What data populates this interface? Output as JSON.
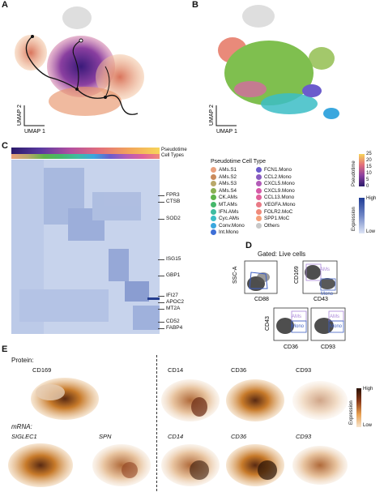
{
  "panels": {
    "a": "A",
    "b": "B",
    "c": "C",
    "d": "D",
    "e": "E"
  },
  "umap_axes": {
    "x": "UMAP 1",
    "y": "UMAP 2"
  },
  "heatmap": {
    "track_labels": [
      "Pseudotime",
      "Cell Types"
    ],
    "genes": [
      "FPR3",
      "CTSB",
      "SOD2",
      "ISG15",
      "GBP1",
      "IFI27",
      "APOC2",
      "MT2A",
      "CD52",
      "FABP4"
    ]
  },
  "legend": {
    "title": "Pseudotime Cell Type",
    "items": [
      {
        "label": "AMs.S1",
        "color": "#e9a07d"
      },
      {
        "label": "AMs.S2",
        "color": "#c98a5b"
      },
      {
        "label": "AMs.S3",
        "color": "#b9a86a"
      },
      {
        "label": "AMs.S4",
        "color": "#8ab052"
      },
      {
        "label": "CK.AMs",
        "color": "#5fb34a"
      },
      {
        "label": "MT.AMs",
        "color": "#45b86b"
      },
      {
        "label": "IFN.AMs",
        "color": "#3ebca0"
      },
      {
        "label": "Cyc.AMs",
        "color": "#3bbdc6"
      },
      {
        "label": "Conv.Mono",
        "color": "#3aa7de"
      },
      {
        "label": "Int.Mono",
        "color": "#3e6fd6"
      },
      {
        "label": "FCN1.Mono",
        "color": "#6b5ccc"
      },
      {
        "label": "CCL2.Mono",
        "color": "#8a5cc0"
      },
      {
        "label": "CXCL5.Mono",
        "color": "#b35cb8"
      },
      {
        "label": "CXCL9.Mono",
        "color": "#d65aa8"
      },
      {
        "label": "CCL13.Mono",
        "color": "#e0609a"
      },
      {
        "label": "VEGFA.Mono",
        "color": "#e97a86"
      },
      {
        "label": "FOLR2.MoC",
        "color": "#f08a7a"
      },
      {
        "label": "SPP1.MoC",
        "color": "#f5a07a"
      },
      {
        "label": "Others",
        "color": "#c8c8c8"
      }
    ],
    "pseudotime_ticks": [
      "25",
      "20",
      "15",
      "10",
      "5",
      "0"
    ],
    "pseudotime_label": "Pseudotime",
    "expression_label": "Expression",
    "expression_high": "High",
    "expression_low": "Low"
  },
  "flow": {
    "gated": "Gated: Live cells",
    "ssc": "SSC-A",
    "cd88": "CD88",
    "cd169": "CD169",
    "cd43_x": "CD43",
    "cd43_y": "CD43",
    "cd36": "CD36",
    "cd93": "CD93",
    "ams": "AMs",
    "mono": "Mono"
  },
  "panel_e": {
    "protein": "Protein:",
    "mrna": "mRNA:",
    "protein_markers": [
      "CD169",
      "CD14",
      "CD36",
      "CD93"
    ],
    "mrna_markers": [
      "SIGLEC1",
      "SPN",
      "CD14",
      "CD36",
      "CD93"
    ],
    "expression_label": "Expression",
    "high": "High",
    "low": "Low"
  }
}
